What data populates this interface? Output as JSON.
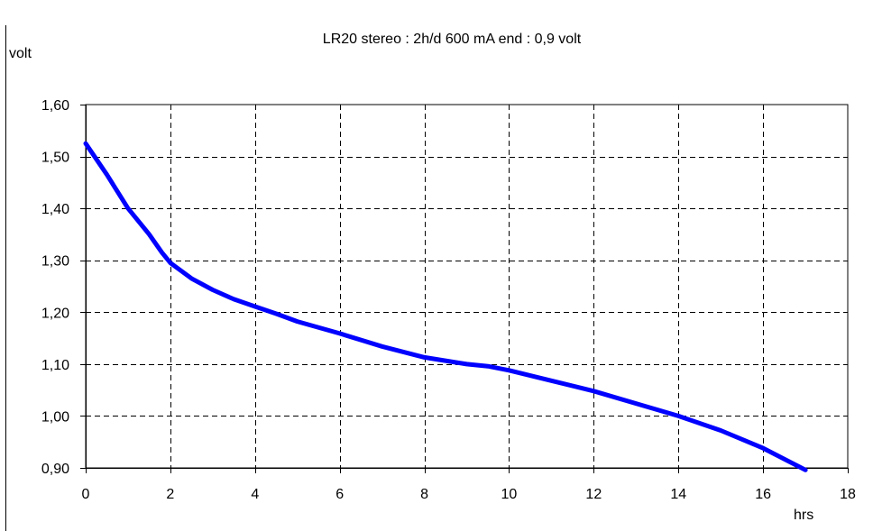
{
  "chart_data": {
    "type": "line",
    "title": "LR20 stereo  : 2h/d 600 mA  end : 0,9 volt",
    "xlabel": "hrs",
    "ylabel": "volt",
    "xlim": [
      0,
      18
    ],
    "ylim": [
      0.9,
      1.6
    ],
    "xticks": [
      0,
      2,
      4,
      6,
      8,
      10,
      12,
      14,
      16,
      18
    ],
    "yticks": [
      0.9,
      1.0,
      1.1,
      1.2,
      1.3,
      1.4,
      1.5,
      1.6
    ],
    "x_tick_labels": [
      "0",
      "2",
      "4",
      "6",
      "8",
      "10",
      "12",
      "14",
      "16",
      "18"
    ],
    "y_tick_labels": [
      "0,90",
      "1,00",
      "1,10",
      "1,20",
      "1,30",
      "1,40",
      "1,50",
      "1,60"
    ],
    "grid": true,
    "series": [
      {
        "color": "#0000ff",
        "x": [
          0,
          0.5,
          1,
          1.5,
          1.8,
          2,
          2.5,
          3,
          3.5,
          4,
          4.5,
          5,
          6,
          7,
          8,
          9,
          9.5,
          10,
          11,
          12,
          13,
          14,
          15,
          16,
          17
        ],
        "y": [
          1.525,
          1.465,
          1.4,
          1.35,
          1.315,
          1.295,
          1.265,
          1.243,
          1.225,
          1.211,
          1.197,
          1.182,
          1.159,
          1.134,
          1.113,
          1.1,
          1.096,
          1.088,
          1.068,
          1.048,
          1.024,
          1.0,
          0.972,
          0.938,
          0.896
        ]
      }
    ]
  }
}
